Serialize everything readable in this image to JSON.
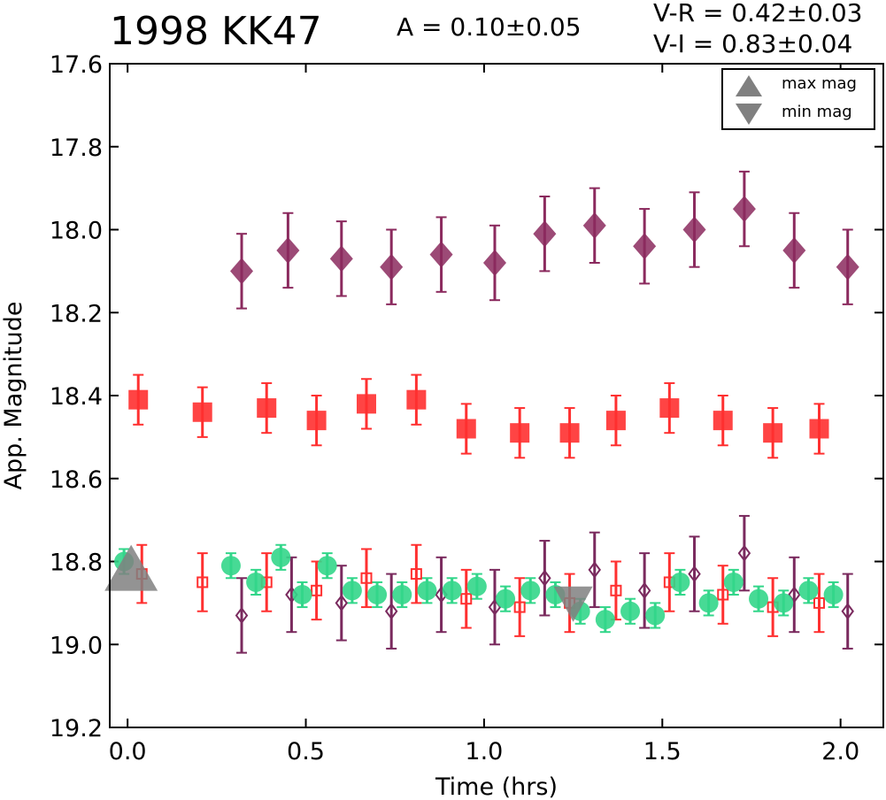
{
  "chart_data": {
    "type": "scatter",
    "title": "1998 KK47",
    "annotations": {
      "amplitude": "A  = 0.10±0.05",
      "v_r": "V-R = 0.42±0.03",
      "v_i": "V-I  = 0.83±0.04"
    },
    "xlabel": "Time (hrs)",
    "ylabel": "App. Magnitude",
    "xlim": [
      -0.05,
      2.12
    ],
    "ylim": [
      17.6,
      19.2
    ],
    "y_inverted": true,
    "x_ticks": [
      "0.0",
      "0.5",
      "1.0",
      "1.5",
      "2.0"
    ],
    "y_ticks": [
      "17.6",
      "17.8",
      "18.0",
      "18.2",
      "18.4",
      "18.6",
      "18.8",
      "19.0",
      "19.2"
    ],
    "legend": {
      "placement": "top-right",
      "entries": [
        {
          "label": "max mag",
          "marker": "triangle-up",
          "color": "#808080"
        },
        {
          "label": "min mag",
          "marker": "triangle-down",
          "color": "#808080"
        }
      ]
    },
    "markers": [
      {
        "label": "max mag",
        "shape": "triangle-up",
        "x": 0.01,
        "y": 18.83
      },
      {
        "label": "min mag",
        "shape": "triangle-down",
        "x": 1.25,
        "y": 18.89
      }
    ],
    "series": [
      {
        "marker": "diamond-filled",
        "color": "#8b2a5e",
        "x": [
          0.32,
          0.45,
          0.6,
          0.74,
          0.88,
          1.03,
          1.17,
          1.31,
          1.45,
          1.59,
          1.73,
          1.87,
          2.02
        ],
        "y": [
          18.1,
          18.05,
          18.07,
          18.09,
          18.06,
          18.08,
          18.01,
          17.99,
          18.04,
          18.0,
          17.95,
          18.05,
          18.09
        ],
        "err": [
          0.09,
          0.09,
          0.09,
          0.09,
          0.09,
          0.09,
          0.09,
          0.09,
          0.09,
          0.09,
          0.09,
          0.09,
          0.09
        ]
      },
      {
        "marker": "square-filled",
        "color": "#ff3030",
        "x": [
          0.03,
          0.21,
          0.39,
          0.53,
          0.67,
          0.81,
          0.95,
          1.1,
          1.24,
          1.37,
          1.52,
          1.67,
          1.81,
          1.94
        ],
        "y": [
          18.41,
          18.44,
          18.43,
          18.46,
          18.42,
          18.41,
          18.48,
          18.49,
          18.49,
          18.46,
          18.43,
          18.46,
          18.49,
          18.48
        ],
        "err": [
          0.06,
          0.06,
          0.06,
          0.06,
          0.06,
          0.06,
          0.06,
          0.06,
          0.06,
          0.06,
          0.06,
          0.06,
          0.06,
          0.06
        ]
      },
      {
        "marker": "circle-filled",
        "color": "#33d68a",
        "x": [
          -0.01,
          0.29,
          0.36,
          0.43,
          0.49,
          0.56,
          0.63,
          0.7,
          0.77,
          0.84,
          0.91,
          0.98,
          1.06,
          1.13,
          1.2,
          1.27,
          1.34,
          1.41,
          1.48,
          1.55,
          1.63,
          1.7,
          1.77,
          1.84,
          1.91,
          1.98
        ],
        "y": [
          18.8,
          18.81,
          18.85,
          18.79,
          18.88,
          18.81,
          18.87,
          18.88,
          18.88,
          18.87,
          18.87,
          18.86,
          18.89,
          18.87,
          18.88,
          18.92,
          18.94,
          18.92,
          18.93,
          18.85,
          18.9,
          18.85,
          18.89,
          18.9,
          18.87,
          18.88
        ],
        "err": [
          0.03,
          0.03,
          0.03,
          0.03,
          0.03,
          0.03,
          0.03,
          0.03,
          0.03,
          0.03,
          0.03,
          0.03,
          0.03,
          0.03,
          0.03,
          0.03,
          0.03,
          0.03,
          0.03,
          0.03,
          0.03,
          0.03,
          0.03,
          0.03,
          0.03,
          0.03
        ]
      },
      {
        "marker": "square-open",
        "color": "#ff3030",
        "x": [
          0.04,
          0.21,
          0.39,
          0.53,
          0.67,
          0.81,
          0.95,
          1.1,
          1.24,
          1.37,
          1.52,
          1.67,
          1.81,
          1.94
        ],
        "y": [
          18.83,
          18.85,
          18.85,
          18.87,
          18.84,
          18.83,
          18.89,
          18.91,
          18.9,
          18.87,
          18.85,
          18.88,
          18.91,
          18.9
        ],
        "err": [
          0.07,
          0.07,
          0.07,
          0.07,
          0.07,
          0.07,
          0.07,
          0.07,
          0.07,
          0.07,
          0.07,
          0.07,
          0.07,
          0.07
        ]
      },
      {
        "marker": "diamond-open",
        "color": "#7a2a5e",
        "x": [
          0.32,
          0.46,
          0.6,
          0.74,
          0.88,
          1.03,
          1.17,
          1.31,
          1.45,
          1.59,
          1.73,
          1.87,
          2.02
        ],
        "y": [
          18.93,
          18.88,
          18.9,
          18.92,
          18.88,
          18.91,
          18.84,
          18.82,
          18.87,
          18.83,
          18.78,
          18.88,
          18.92
        ],
        "err": [
          0.09,
          0.09,
          0.09,
          0.09,
          0.09,
          0.09,
          0.09,
          0.09,
          0.09,
          0.09,
          0.09,
          0.09,
          0.09
        ]
      }
    ]
  }
}
